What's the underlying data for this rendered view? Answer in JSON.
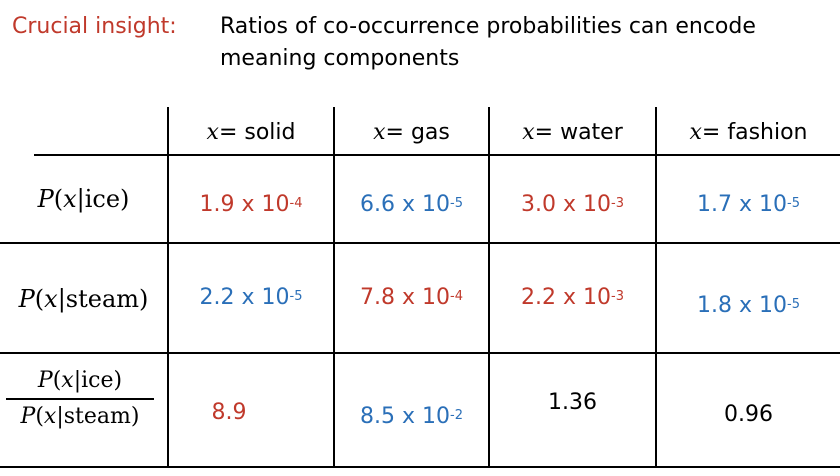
{
  "heading": {
    "label": "Crucial insight:",
    "line1": "Ratios of co-occurrence probabilities can encode",
    "line2": "meaning components"
  },
  "colors": {
    "red": "#c0392b",
    "blue": "#2a6fb8",
    "black": "#000000"
  },
  "table": {
    "columns": [
      {
        "var": "x",
        "eq": " = solid"
      },
      {
        "var": "x",
        "eq": " = gas"
      },
      {
        "var": "x",
        "eq": " = water"
      },
      {
        "var": "x",
        "eq": " = fashion"
      }
    ],
    "rows": [
      {
        "label": {
          "p": "P",
          "open": "(",
          "x": "x",
          "cond": "|ice)"
        },
        "cells": [
          {
            "mant": "1.9 x 10",
            "exp": "-4",
            "color": "red"
          },
          {
            "mant": "6.6 x 10",
            "exp": "-5",
            "color": "blue"
          },
          {
            "mant": "3.0 x 10",
            "exp": "-3",
            "color": "red"
          },
          {
            "mant": "1.7 x 10",
            "exp": "-5",
            "color": "blue"
          }
        ]
      },
      {
        "label": {
          "p": "P",
          "open": "(",
          "x": "x",
          "cond": "|steam)"
        },
        "cells": [
          {
            "mant": "2.2 x 10",
            "exp": "-5",
            "color": "blue"
          },
          {
            "mant": "7.8 x 10",
            "exp": "-4",
            "color": "red"
          },
          {
            "mant": "2.2 x 10",
            "exp": "-3",
            "color": "red"
          },
          {
            "mant": "1.8 x 10",
            "exp": "-5",
            "color": "blue"
          }
        ]
      },
      {
        "label": {
          "num": {
            "p": "P",
            "open": "(",
            "x": "x",
            "cond": "|ice)"
          },
          "den": {
            "p": "P",
            "open": "(",
            "x": "x",
            "cond": "|steam)"
          }
        },
        "cells": [
          {
            "mant": "8.9",
            "exp": "",
            "color": "red"
          },
          {
            "mant": "8.5 x 10",
            "exp": "-2",
            "color": "blue"
          },
          {
            "mant": "1.36",
            "exp": "",
            "color": "black"
          },
          {
            "mant": "0.96",
            "exp": "",
            "color": "black"
          }
        ]
      }
    ]
  }
}
